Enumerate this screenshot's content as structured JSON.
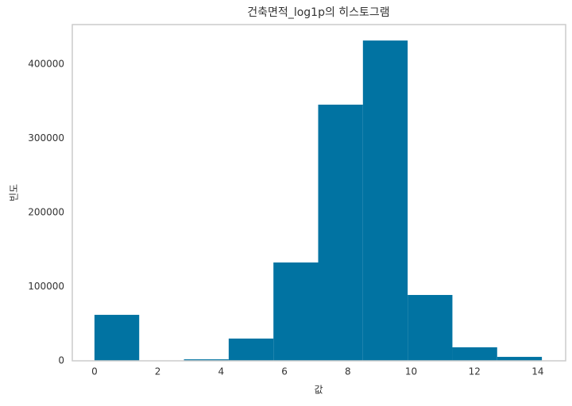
{
  "chart_data": {
    "type": "histogram",
    "title": "건축면적_log1p의 히스토그램",
    "x_label": "값",
    "y_label": "빈도",
    "bins": [
      0,
      1.413,
      2.826,
      4.239,
      5.652,
      7.065,
      8.478,
      9.891,
      11.304,
      12.717,
      14.13
    ],
    "counts": [
      62000,
      500,
      2000,
      30000,
      132600,
      345500,
      432000,
      88800,
      18200,
      5300
    ],
    "color": "#0173a2",
    "xlim": [
      -0.7,
      14.88
    ],
    "xticks": [
      0,
      2,
      4,
      6,
      8,
      10,
      12,
      14
    ],
    "ylim": [
      0,
      453500
    ],
    "yticks": [
      0,
      100000,
      200000,
      300000,
      400000
    ],
    "grid": false
  }
}
